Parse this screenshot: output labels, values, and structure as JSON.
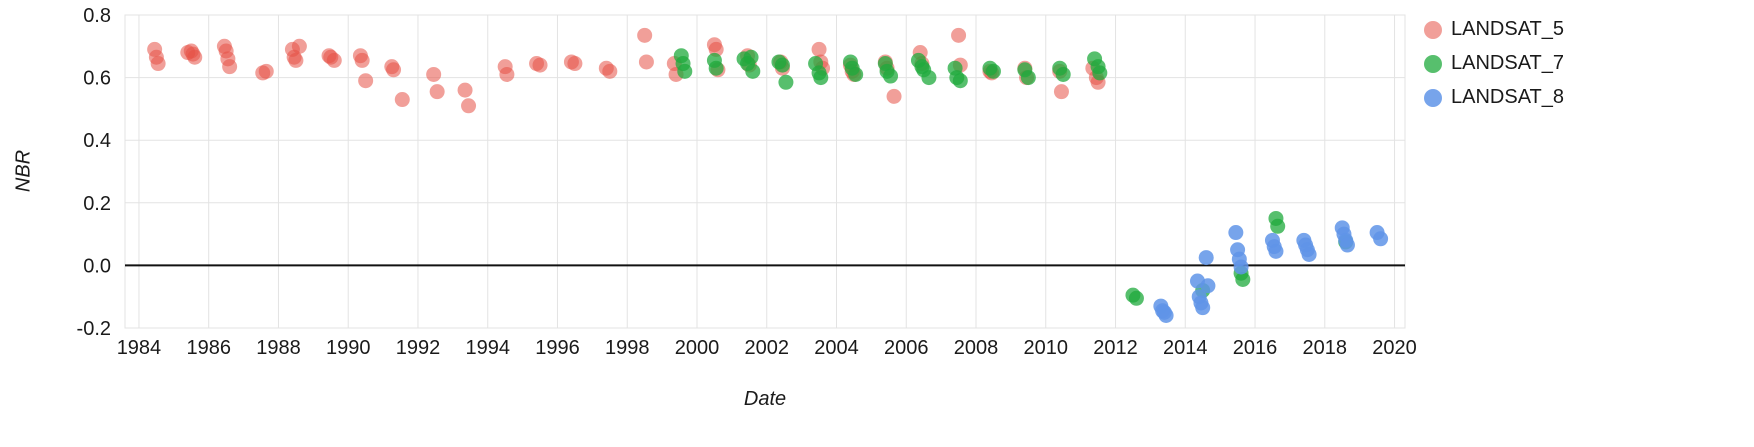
{
  "chart_data": {
    "type": "scatter",
    "title": "",
    "xlabel": "Date",
    "ylabel": "NBR",
    "xlim": [
      1983.6,
      2020.3
    ],
    "ylim": [
      -0.2,
      0.8
    ],
    "x_ticks": [
      1984,
      1986,
      1988,
      1990,
      1992,
      1994,
      1996,
      1998,
      2000,
      2002,
      2004,
      2006,
      2008,
      2010,
      2012,
      2014,
      2016,
      2018,
      2020
    ],
    "y_ticks": [
      -0.2,
      0.0,
      0.2,
      0.4,
      0.6,
      0.8
    ],
    "grid": true,
    "baseline": 0,
    "grid_color": "#e3e3e3",
    "baseline_color": "#111111",
    "legend_position": "right",
    "point_radius": 7.5,
    "series": [
      {
        "name": "LANDSAT_5",
        "color": "#e65046",
        "opacity": 0.55,
        "points": [
          [
            1984.45,
            0.69
          ],
          [
            1984.5,
            0.665
          ],
          [
            1984.55,
            0.645
          ],
          [
            1985.4,
            0.68
          ],
          [
            1985.5,
            0.685
          ],
          [
            1985.55,
            0.675
          ],
          [
            1985.6,
            0.665
          ],
          [
            1986.45,
            0.7
          ],
          [
            1986.5,
            0.685
          ],
          [
            1986.55,
            0.66
          ],
          [
            1986.6,
            0.635
          ],
          [
            1987.55,
            0.615
          ],
          [
            1987.65,
            0.62
          ],
          [
            1988.4,
            0.69
          ],
          [
            1988.45,
            0.665
          ],
          [
            1988.5,
            0.655
          ],
          [
            1988.6,
            0.7
          ],
          [
            1989.45,
            0.67
          ],
          [
            1989.5,
            0.665
          ],
          [
            1989.6,
            0.655
          ],
          [
            1990.35,
            0.67
          ],
          [
            1990.4,
            0.655
          ],
          [
            1990.5,
            0.59
          ],
          [
            1991.25,
            0.635
          ],
          [
            1991.3,
            0.625
          ],
          [
            1991.55,
            0.53
          ],
          [
            1992.45,
            0.61
          ],
          [
            1992.55,
            0.555
          ],
          [
            1993.35,
            0.56
          ],
          [
            1993.45,
            0.51
          ],
          [
            1994.5,
            0.635
          ],
          [
            1994.55,
            0.61
          ],
          [
            1995.4,
            0.645
          ],
          [
            1995.5,
            0.64
          ],
          [
            1996.4,
            0.65
          ],
          [
            1996.5,
            0.645
          ],
          [
            1997.4,
            0.63
          ],
          [
            1997.5,
            0.62
          ],
          [
            1998.5,
            0.735
          ],
          [
            1998.55,
            0.65
          ],
          [
            1999.35,
            0.645
          ],
          [
            1999.4,
            0.61
          ],
          [
            2000.5,
            0.705
          ],
          [
            2000.55,
            0.69
          ],
          [
            2000.6,
            0.625
          ],
          [
            2001.45,
            0.67
          ],
          [
            2001.5,
            0.64
          ],
          [
            2002.4,
            0.65
          ],
          [
            2002.45,
            0.63
          ],
          [
            2003.5,
            0.69
          ],
          [
            2003.55,
            0.65
          ],
          [
            2003.6,
            0.63
          ],
          [
            2004.4,
            0.64
          ],
          [
            2004.45,
            0.62
          ],
          [
            2004.5,
            0.61
          ],
          [
            2005.4,
            0.65
          ],
          [
            2005.45,
            0.63
          ],
          [
            2005.65,
            0.54
          ],
          [
            2006.4,
            0.68
          ],
          [
            2006.45,
            0.645
          ],
          [
            2007.5,
            0.735
          ],
          [
            2007.55,
            0.64
          ],
          [
            2008.4,
            0.62
          ],
          [
            2008.45,
            0.615
          ],
          [
            2009.4,
            0.63
          ],
          [
            2009.45,
            0.6
          ],
          [
            2010.4,
            0.62
          ],
          [
            2010.45,
            0.555
          ],
          [
            2011.35,
            0.63
          ],
          [
            2011.45,
            0.6
          ],
          [
            2011.5,
            0.585
          ]
        ]
      },
      {
        "name": "LANDSAT_7",
        "color": "#1faa3c",
        "opacity": 0.75,
        "points": [
          [
            1999.55,
            0.67
          ],
          [
            1999.6,
            0.645
          ],
          [
            1999.65,
            0.62
          ],
          [
            2000.5,
            0.655
          ],
          [
            2000.55,
            0.63
          ],
          [
            2001.35,
            0.66
          ],
          [
            2001.45,
            0.645
          ],
          [
            2001.55,
            0.665
          ],
          [
            2001.6,
            0.62
          ],
          [
            2002.35,
            0.65
          ],
          [
            2002.45,
            0.64
          ],
          [
            2002.55,
            0.585
          ],
          [
            2003.4,
            0.645
          ],
          [
            2003.5,
            0.615
          ],
          [
            2003.55,
            0.6
          ],
          [
            2004.4,
            0.65
          ],
          [
            2004.45,
            0.63
          ],
          [
            2004.55,
            0.61
          ],
          [
            2005.4,
            0.645
          ],
          [
            2005.45,
            0.62
          ],
          [
            2005.55,
            0.605
          ],
          [
            2006.35,
            0.655
          ],
          [
            2006.45,
            0.635
          ],
          [
            2006.5,
            0.625
          ],
          [
            2006.65,
            0.6
          ],
          [
            2007.4,
            0.63
          ],
          [
            2007.45,
            0.6
          ],
          [
            2007.55,
            0.59
          ],
          [
            2008.4,
            0.63
          ],
          [
            2008.5,
            0.62
          ],
          [
            2009.4,
            0.625
          ],
          [
            2009.5,
            0.6
          ],
          [
            2010.4,
            0.63
          ],
          [
            2010.5,
            0.61
          ],
          [
            2011.4,
            0.66
          ],
          [
            2011.5,
            0.635
          ],
          [
            2011.55,
            0.615
          ],
          [
            2012.5,
            -0.095
          ],
          [
            2012.6,
            -0.105
          ],
          [
            2014.5,
            -0.08
          ],
          [
            2015.6,
            -0.025
          ],
          [
            2015.65,
            -0.045
          ],
          [
            2016.6,
            0.15
          ],
          [
            2016.65,
            0.125
          ],
          [
            2018.6,
            0.075
          ]
        ]
      },
      {
        "name": "LANDSAT_8",
        "color": "#5f94e8",
        "opacity": 0.85,
        "points": [
          [
            2013.3,
            -0.13
          ],
          [
            2013.35,
            -0.145
          ],
          [
            2013.4,
            -0.15
          ],
          [
            2013.45,
            -0.16
          ],
          [
            2014.35,
            -0.05
          ],
          [
            2014.4,
            -0.1
          ],
          [
            2014.45,
            -0.12
          ],
          [
            2014.5,
            -0.135
          ],
          [
            2014.6,
            0.025
          ],
          [
            2014.65,
            -0.065
          ],
          [
            2015.45,
            0.105
          ],
          [
            2015.5,
            0.05
          ],
          [
            2015.55,
            0.02
          ],
          [
            2015.6,
            -0.005
          ],
          [
            2016.5,
            0.08
          ],
          [
            2016.55,
            0.06
          ],
          [
            2016.6,
            0.045
          ],
          [
            2017.4,
            0.08
          ],
          [
            2017.45,
            0.065
          ],
          [
            2017.5,
            0.05
          ],
          [
            2017.55,
            0.035
          ],
          [
            2018.5,
            0.12
          ],
          [
            2018.55,
            0.1
          ],
          [
            2018.6,
            0.08
          ],
          [
            2018.65,
            0.065
          ],
          [
            2019.5,
            0.105
          ],
          [
            2019.6,
            0.085
          ]
        ]
      }
    ]
  }
}
